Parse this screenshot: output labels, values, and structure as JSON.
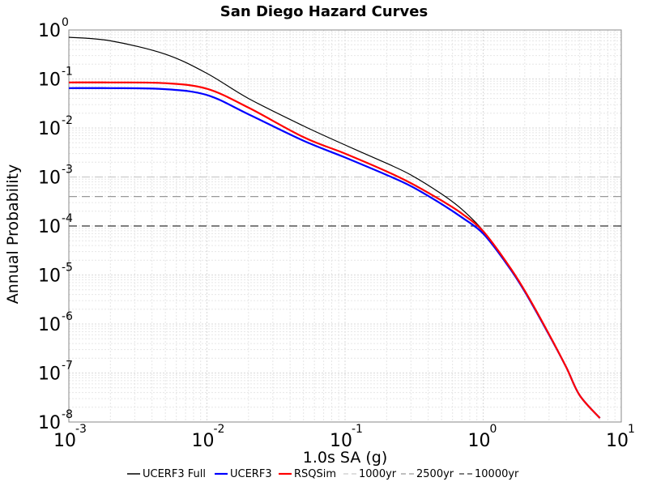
{
  "chart_data": {
    "type": "line",
    "title": "San Diego Hazard Curves",
    "xlabel": "1.0s SA (g)",
    "ylabel": "Annual Probability",
    "x_scale": "log",
    "y_scale": "log",
    "xlim": [
      0.001,
      10
    ],
    "ylim": [
      1e-08,
      1
    ],
    "x_ticks": [
      {
        "base": "10",
        "exp": "-3"
      },
      {
        "base": "10",
        "exp": "-2"
      },
      {
        "base": "10",
        "exp": "-1"
      },
      {
        "base": "10",
        "exp": "0"
      },
      {
        "base": "10",
        "exp": "1"
      }
    ],
    "y_ticks": [
      {
        "base": "10",
        "exp": "0"
      },
      {
        "base": "10",
        "exp": "-1"
      },
      {
        "base": "10",
        "exp": "-2"
      },
      {
        "base": "10",
        "exp": "-3"
      },
      {
        "base": "10",
        "exp": "-4"
      },
      {
        "base": "10",
        "exp": "-5"
      },
      {
        "base": "10",
        "exp": "-6"
      },
      {
        "base": "10",
        "exp": "-7"
      },
      {
        "base": "10",
        "exp": "-8"
      }
    ],
    "grid": true,
    "legend_position": "bottom",
    "series": [
      {
        "name": "UCERF3 Full",
        "color": "#000000",
        "x": [
          0.001,
          0.002,
          0.005,
          0.01,
          0.02,
          0.05,
          0.1,
          0.2,
          0.3,
          0.5,
          0.7,
          1.0,
          1.5,
          2.0,
          3.0,
          4.0,
          5.0,
          7.0
        ],
        "y": [
          0.71,
          0.6,
          0.32,
          0.13,
          0.04,
          0.011,
          0.0045,
          0.0019,
          0.0011,
          0.00045,
          0.00022,
          8e-05,
          1.6e-05,
          4.6e-06,
          6e-07,
          1.3e-07,
          3.5e-08,
          1.2e-08
        ]
      },
      {
        "name": "UCERF3",
        "color": "#0000ff",
        "x": [
          0.001,
          0.002,
          0.005,
          0.01,
          0.02,
          0.05,
          0.1,
          0.2,
          0.3,
          0.5,
          0.7,
          1.0,
          1.5,
          2.0,
          3.0,
          4.0,
          5.0,
          7.0
        ],
        "y": [
          0.065,
          0.065,
          0.062,
          0.047,
          0.019,
          0.0055,
          0.0025,
          0.0011,
          0.00065,
          0.00028,
          0.00015,
          7e-05,
          1.6e-05,
          4.6e-06,
          6e-07,
          1.3e-07,
          3.5e-08,
          1.2e-08
        ]
      },
      {
        "name": "RSQSim",
        "color": "#ff0000",
        "x": [
          0.001,
          0.002,
          0.005,
          0.01,
          0.02,
          0.05,
          0.1,
          0.2,
          0.3,
          0.5,
          0.7,
          1.0,
          1.5,
          2.0,
          3.0,
          4.0,
          5.0,
          7.0
        ],
        "y": [
          0.085,
          0.085,
          0.082,
          0.063,
          0.026,
          0.0065,
          0.003,
          0.0013,
          0.00075,
          0.00033,
          0.00018,
          7.8e-05,
          1.7e-05,
          4.8e-06,
          6.2e-07,
          1.3e-07,
          3.5e-08,
          1.2e-08
        ]
      },
      {
        "name": "1000yr",
        "color": "#cccccc",
        "x": [
          0.001,
          10
        ],
        "y": [
          0.001,
          0.001
        ]
      },
      {
        "name": "2500yr",
        "color": "#999999",
        "x": [
          0.001,
          10
        ],
        "y": [
          0.0004,
          0.0004
        ]
      },
      {
        "name": "10000yr",
        "color": "#555555",
        "x": [
          0.001,
          10
        ],
        "y": [
          0.0001,
          0.0001
        ]
      }
    ]
  }
}
